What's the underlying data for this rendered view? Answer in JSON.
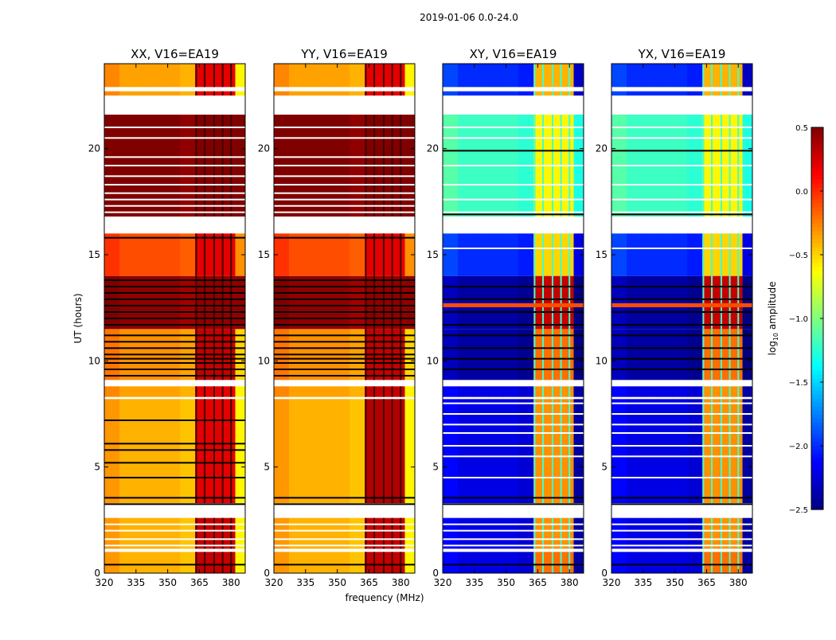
{
  "chart_data": {
    "type": "heatmap",
    "title": "2019-01-06 0.0-24.0",
    "xlabel": "frequency (MHz)",
    "ylabel": "UT (hours)",
    "xlim": [
      320,
      386.7
    ],
    "ylim": [
      0,
      24
    ],
    "xticks": [
      320,
      335,
      350,
      365,
      380
    ],
    "yticks": [
      0,
      5,
      10,
      15,
      20
    ],
    "colorbar": {
      "label_main": "log",
      "label_sub": "10",
      "label_rest": " amplitude",
      "range": [
        -2.5,
        0.5
      ],
      "ticks": [
        "−2.5",
        "−2.0",
        "−1.5",
        "−1.0",
        "−0.5",
        "0.0",
        "0.5"
      ],
      "tick_values": [
        -2.5,
        -2.0,
        -1.5,
        -1.0,
        -0.5,
        0.0,
        0.5
      ],
      "colormap": "jet"
    },
    "bands_mhz": {
      "low": [
        320,
        363
      ],
      "high": [
        363,
        382
      ],
      "edge": [
        382,
        386.7
      ],
      "high_separators": [
        363.5,
        367.5,
        372,
        376,
        380
      ]
    },
    "flagged_hours": [
      [
        1.0,
        1.15
      ],
      [
        2.6,
        3.3
      ],
      [
        8.2,
        8.3
      ],
      [
        8.8,
        9.1
      ],
      [
        16.0,
        16.8
      ],
      [
        21.6,
        22.5
      ],
      [
        22.7,
        22.9
      ]
    ],
    "panels": [
      {
        "title": "XX, V16=EA19",
        "separator_color": "#400000",
        "segments": [
          [
            0,
            1.0,
            -0.4,
            0.3,
            -0.6
          ],
          [
            1.15,
            2.6,
            -0.4,
            0.3,
            -0.6
          ],
          [
            3.3,
            8.2,
            -0.4,
            0.2,
            -0.6
          ],
          [
            8.3,
            8.8,
            -0.35,
            0.2,
            -0.6
          ],
          [
            9.1,
            11.5,
            -0.3,
            0.3,
            -0.5
          ],
          [
            11.5,
            14.0,
            0.45,
            0.45,
            0.45
          ],
          [
            14.0,
            16.0,
            -0.1,
            0.2,
            -0.3
          ],
          [
            16.8,
            21.6,
            0.5,
            0.5,
            0.5
          ],
          [
            22.5,
            22.7,
            -0.35,
            0.2,
            -0.6
          ],
          [
            22.9,
            24,
            -0.35,
            0.2,
            -0.6
          ]
        ],
        "black_lines": [
          0.4,
          3.25,
          3.55,
          4.5,
          5.2,
          5.8,
          6.1,
          7.2,
          9.3,
          9.6,
          9.9,
          10.1,
          10.3,
          10.6,
          10.9,
          11.2,
          11.7,
          12.0,
          12.3,
          12.6,
          12.9,
          13.2,
          13.5,
          13.8,
          15.8
        ],
        "white_lines": [
          1.3,
          1.6,
          2.0,
          2.3,
          17.0,
          17.3,
          17.6,
          17.9,
          18.3,
          18.7,
          19.2,
          19.6,
          20.5,
          21.0
        ],
        "accent_lines": []
      },
      {
        "title": "YY, V16=EA19",
        "separator_color": "#400000",
        "segments": [
          [
            0,
            1.0,
            -0.4,
            0.3,
            -0.6
          ],
          [
            1.15,
            2.6,
            -0.4,
            0.3,
            -0.6
          ],
          [
            3.3,
            8.2,
            -0.4,
            0.35,
            -0.6
          ],
          [
            8.3,
            8.8,
            -0.35,
            0.3,
            -0.6
          ],
          [
            9.1,
            11.5,
            -0.3,
            0.3,
            -0.5
          ],
          [
            11.5,
            14.0,
            0.45,
            0.45,
            0.45
          ],
          [
            14.0,
            16.0,
            -0.1,
            0.2,
            -0.3
          ],
          [
            16.8,
            21.6,
            0.5,
            0.5,
            0.5
          ],
          [
            22.5,
            22.7,
            -0.35,
            0.2,
            -0.6
          ],
          [
            22.9,
            24,
            -0.35,
            0.2,
            -0.6
          ]
        ],
        "black_lines": [
          0.4,
          3.25,
          3.55,
          9.3,
          9.6,
          9.9,
          10.1,
          10.3,
          10.6,
          10.9,
          11.2,
          11.7,
          12.0,
          12.3,
          12.6,
          12.9,
          13.2,
          13.5,
          13.8,
          15.8
        ],
        "white_lines": [
          1.3,
          1.6,
          2.0,
          2.3,
          17.0,
          17.3,
          17.6,
          17.9,
          18.3,
          18.7,
          19.2,
          19.6,
          20.5,
          21.0
        ],
        "accent_lines": []
      },
      {
        "title": "XY, V16=EA19",
        "separator_color": "#40ffd0",
        "segments": [
          [
            0,
            1.0,
            -2.2,
            -0.2,
            -2.4
          ],
          [
            1.15,
            2.6,
            -2.2,
            -0.3,
            -2.4
          ],
          [
            3.3,
            8.2,
            -2.2,
            -0.3,
            -2.4
          ],
          [
            8.3,
            8.8,
            -2.2,
            -0.3,
            -2.4
          ],
          [
            9.1,
            11.5,
            -2.4,
            -0.2,
            -2.5
          ],
          [
            11.5,
            14.0,
            -2.4,
            0.3,
            -2.5
          ],
          [
            14.0,
            16.0,
            -2.0,
            -0.5,
            -2.2
          ],
          [
            16.8,
            21.6,
            -1.2,
            -0.6,
            -1.3
          ],
          [
            22.5,
            22.7,
            -2.0,
            -0.4,
            -2.3
          ],
          [
            22.9,
            24,
            -2.0,
            -0.4,
            -2.3
          ]
        ],
        "black_lines": [
          0.4,
          3.25,
          3.55,
          9.6,
          10.1,
          10.6,
          11.2,
          11.7,
          12.3,
          12.9,
          13.5,
          16.9,
          19.9
        ],
        "white_lines": [
          1.3,
          1.6,
          2.0,
          2.3,
          4.5,
          5.5,
          6.0,
          6.6,
          7.0,
          7.5,
          8.0,
          15.3,
          17.0,
          17.6,
          18.3,
          19.2,
          20.5,
          21.0
        ],
        "accent_lines": [
          12.6
        ]
      },
      {
        "title": "YX, V16=EA19",
        "separator_color": "#40ffd0",
        "segments": [
          [
            0,
            1.0,
            -2.2,
            -0.2,
            -2.4
          ],
          [
            1.15,
            2.6,
            -2.2,
            -0.3,
            -2.4
          ],
          [
            3.3,
            8.2,
            -2.2,
            -0.3,
            -2.4
          ],
          [
            8.3,
            8.8,
            -2.2,
            -0.3,
            -2.4
          ],
          [
            9.1,
            11.5,
            -2.4,
            -0.2,
            -2.5
          ],
          [
            11.5,
            14.0,
            -2.4,
            0.3,
            -2.5
          ],
          [
            14.0,
            16.0,
            -2.0,
            -0.5,
            -2.2
          ],
          [
            16.8,
            21.6,
            -1.2,
            -0.6,
            -1.3
          ],
          [
            22.5,
            22.7,
            -2.0,
            -0.4,
            -2.3
          ],
          [
            22.9,
            24,
            -2.0,
            -0.4,
            -2.3
          ]
        ],
        "black_lines": [
          0.4,
          3.25,
          3.55,
          9.6,
          10.1,
          10.6,
          11.2,
          11.7,
          12.3,
          12.9,
          13.5,
          16.9,
          19.9
        ],
        "white_lines": [
          1.3,
          1.6,
          2.0,
          2.3,
          4.5,
          5.5,
          6.0,
          6.6,
          7.0,
          7.5,
          8.0,
          15.3,
          17.0,
          17.6,
          18.3,
          19.2,
          20.5,
          21.0
        ],
        "accent_lines": [
          12.6
        ]
      }
    ]
  }
}
